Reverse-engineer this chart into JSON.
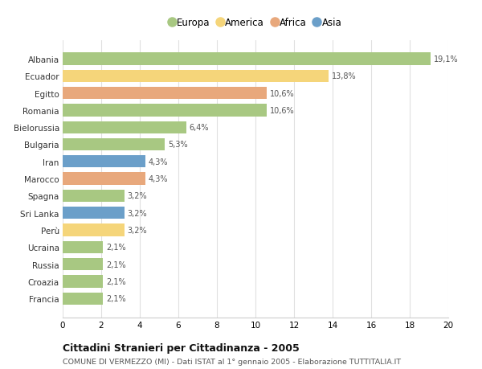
{
  "categories": [
    "Albania",
    "Ecuador",
    "Egitto",
    "Romania",
    "Bielorussia",
    "Bulgaria",
    "Iran",
    "Marocco",
    "Spagna",
    "Sri Lanka",
    "Perù",
    "Ucraina",
    "Russia",
    "Croazia",
    "Francia"
  ],
  "values": [
    19.1,
    13.8,
    10.6,
    10.6,
    6.4,
    5.3,
    4.3,
    4.3,
    3.2,
    3.2,
    3.2,
    2.1,
    2.1,
    2.1,
    2.1
  ],
  "labels": [
    "19,1%",
    "13,8%",
    "10,6%",
    "10,6%",
    "6,4%",
    "5,3%",
    "4,3%",
    "4,3%",
    "3,2%",
    "3,2%",
    "3,2%",
    "2,1%",
    "2,1%",
    "2,1%",
    "2,1%"
  ],
  "continents": [
    "Europa",
    "America",
    "Africa",
    "Europa",
    "Europa",
    "Europa",
    "Asia",
    "Africa",
    "Europa",
    "Asia",
    "America",
    "Europa",
    "Europa",
    "Europa",
    "Europa"
  ],
  "colors": {
    "Europa": "#a8c882",
    "America": "#f5d57a",
    "Africa": "#e8a87c",
    "Asia": "#6b9fc9"
  },
  "legend_order": [
    "Europa",
    "America",
    "Africa",
    "Asia"
  ],
  "title": "Cittadini Stranieri per Cittadinanza - 2005",
  "subtitle": "COMUNE DI VERMEZZO (MI) - Dati ISTAT al 1° gennaio 2005 - Elaborazione TUTTITALIA.IT",
  "xlim": [
    0,
    20
  ],
  "xticks": [
    0,
    2,
    4,
    6,
    8,
    10,
    12,
    14,
    16,
    18,
    20
  ],
  "background_color": "#ffffff",
  "grid_color": "#e0e0e0"
}
